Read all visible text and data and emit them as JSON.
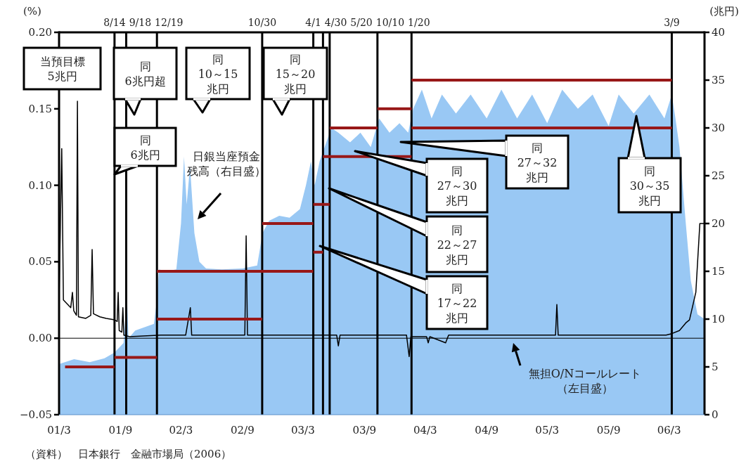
{
  "chart_data": {
    "type": "area",
    "ylabel": "(%)",
    "y2label": "(兆円)",
    "xlim": [
      "2001-03-01",
      "2006-06-15"
    ],
    "xticks": [
      {
        "value": "2001-03-01",
        "label": "01/3"
      },
      {
        "value": "2001-09-01",
        "label": "01/9"
      },
      {
        "value": "2002-03-01",
        "label": "02/3"
      },
      {
        "value": "2002-09-01",
        "label": "02/9"
      },
      {
        "value": "2003-03-01",
        "label": "03/3"
      },
      {
        "value": "2003-09-01",
        "label": "03/9"
      },
      {
        "value": "2004-03-01",
        "label": "04/3"
      },
      {
        "value": "2004-09-01",
        "label": "04/9"
      },
      {
        "value": "2005-03-01",
        "label": "05/3"
      },
      {
        "value": "2005-09-01",
        "label": "05/9"
      },
      {
        "value": "2006-03-01",
        "label": "06/3"
      }
    ],
    "ylim": [
      -0.05,
      0.2
    ],
    "yticks": [
      {
        "value": -0.05,
        "label": "−0.05"
      },
      {
        "value": 0,
        "label": "0.00"
      },
      {
        "value": 0.05,
        "label": "0.05"
      },
      {
        "value": 0.1,
        "label": "0.10"
      },
      {
        "value": 0.15,
        "label": "0.15"
      },
      {
        "value": 0.2,
        "label": "0.20"
      }
    ],
    "y2lim": [
      0,
      40
    ],
    "y2ticks": [
      0,
      5,
      10,
      15,
      20,
      25,
      30,
      35,
      40
    ],
    "series": [
      {
        "type": "area",
        "axis": "y2",
        "name": "日銀当座預金残高（右目盛）",
        "color": "#99c8f4",
        "x": [
          "2001-03-01",
          "2001-04-15",
          "2001-06-01",
          "2001-07-15",
          "2001-08-14",
          "2001-09-10",
          "2001-09-20",
          "2001-09-25",
          "2001-10-15",
          "2001-11-15",
          "2001-12-10",
          "2001-12-19",
          "2001-12-25",
          "2002-01-15",
          "2002-02-15",
          "2002-03-01",
          "2002-03-10",
          "2002-03-18",
          "2002-03-28",
          "2002-04-10",
          "2002-04-25",
          "2002-05-15",
          "2002-07-01",
          "2002-09-01",
          "2002-10-15",
          "2002-10-31",
          "2002-11-20",
          "2002-12-20",
          "2003-01-20",
          "2003-02-20",
          "2003-03-10",
          "2003-03-25",
          "2003-04-05",
          "2003-04-20",
          "2003-05-05",
          "2003-05-25",
          "2003-06-15",
          "2003-07-20",
          "2003-08-20",
          "2003-09-20",
          "2003-10-15",
          "2003-11-15",
          "2003-12-15",
          "2004-01-10",
          "2004-01-25",
          "2004-02-20",
          "2004-03-20",
          "2004-04-20",
          "2004-06-01",
          "2004-07-15",
          "2004-09-01",
          "2004-10-15",
          "2004-12-01",
          "2005-01-15",
          "2005-03-01",
          "2005-04-15",
          "2005-06-01",
          "2005-07-15",
          "2005-09-01",
          "2005-10-01",
          "2005-11-15",
          "2006-01-01",
          "2006-02-15",
          "2006-03-09",
          "2006-03-20",
          "2006-04-01",
          "2006-04-20",
          "2006-05-05",
          "2006-05-25",
          "2006-06-15"
        ],
        "values": [
          5.3,
          5.8,
          5.5,
          5.9,
          6.5,
          7.5,
          12.5,
          8,
          8.8,
          9.2,
          9.5,
          12,
          15.2,
          15,
          15.2,
          20,
          27,
          22,
          26,
          19,
          16,
          15.3,
          15.2,
          15.3,
          15.6,
          19,
          20.3,
          20.8,
          20.6,
          21.5,
          24,
          26.5,
          24,
          26.5,
          28,
          30,
          29.5,
          28.5,
          29.5,
          28,
          31,
          29.5,
          30.5,
          29.5,
          32,
          34,
          31,
          33.5,
          31.5,
          33.5,
          31,
          34,
          31,
          33.5,
          30.5,
          34,
          32,
          33.5,
          30.2,
          33.5,
          31.5,
          33.5,
          31,
          33.5,
          31,
          28,
          20,
          14,
          10.5,
          10
        ]
      },
      {
        "type": "line",
        "axis": "y",
        "name": "無担O/Nコールレート（左目盛）",
        "color": "#000000",
        "x": [
          "2001-03-01",
          "2001-03-09",
          "2001-03-14",
          "2001-04-05",
          "2001-04-10",
          "2001-04-14",
          "2001-04-22",
          "2001-04-25",
          "2001-04-28",
          "2001-05-20",
          "2001-06-04",
          "2001-06-08",
          "2001-06-12",
          "2001-07-01",
          "2001-07-20",
          "2001-08-14",
          "2001-08-22",
          "2001-08-25",
          "2001-08-28",
          "2001-09-05",
          "2001-09-08",
          "2001-09-11",
          "2001-09-28",
          "2001-12-31",
          "2002-03-15",
          "2002-03-29",
          "2002-04-02",
          "2002-09-08",
          "2002-09-12",
          "2002-09-16",
          "2003-06-10",
          "2003-06-15",
          "2003-06-20",
          "2004-01-05",
          "2004-01-13",
          "2004-01-18",
          "2004-03-05",
          "2004-03-10",
          "2004-03-15",
          "2004-05-01",
          "2004-05-10",
          "2005-03-26",
          "2005-03-30",
          "2005-04-03",
          "2006-02-20",
          "2006-03-09",
          "2006-04-01",
          "2006-04-20",
          "2006-05-01",
          "2006-05-20",
          "2006-06-01",
          "2006-06-15"
        ],
        "values": [
          0.025,
          0.124,
          0.025,
          0.02,
          0.03,
          0.018,
          0.015,
          0.155,
          0.014,
          0.013,
          0.015,
          0.058,
          0.016,
          0.014,
          0.013,
          0.012,
          0.011,
          0.03,
          0.005,
          0.004,
          0.02,
          0.002,
          0.001,
          0.002,
          0.002,
          0.02,
          0.002,
          0.002,
          0.067,
          0.002,
          0.002,
          -0.005,
          0.002,
          0.002,
          -0.012,
          0.001,
          0.001,
          -0.003,
          0.001,
          -0.003,
          0.002,
          0.002,
          0.022,
          0.002,
          0.002,
          0.003,
          0.005,
          0.01,
          0.012,
          0.03,
          0.075,
          0.075
        ]
      },
      {
        "type": "line",
        "axis": "y2",
        "color": "#981818",
        "x": [
          "2001-03-19",
          "2001-08-14"
        ],
        "values": [
          5,
          5
        ]
      },
      {
        "type": "line",
        "axis": "y2",
        "color": "#981818",
        "x": [
          "2001-08-14",
          "2001-12-19"
        ],
        "values": [
          6,
          6
        ]
      },
      {
        "type": "line",
        "axis": "y2",
        "color": "#981818",
        "x": [
          "2001-12-19",
          "2002-10-30"
        ],
        "values": [
          10,
          10
        ]
      },
      {
        "type": "line",
        "axis": "y2",
        "color": "#981818",
        "x": [
          "2001-12-19",
          "2003-04-01"
        ],
        "values": [
          15,
          15
        ]
      },
      {
        "type": "line",
        "axis": "y2",
        "color": "#981818",
        "x": [
          "2002-10-30",
          "2003-04-01"
        ],
        "values": [
          20,
          20
        ]
      },
      {
        "type": "line",
        "axis": "y2",
        "color": "#981818",
        "x": [
          "2003-04-01",
          "2003-04-30"
        ],
        "values": [
          17,
          17
        ]
      },
      {
        "type": "line",
        "axis": "y2",
        "color": "#981818",
        "x": [
          "2003-04-01",
          "2003-05-20"
        ],
        "values": [
          22,
          22
        ]
      },
      {
        "type": "line",
        "axis": "y2",
        "color": "#981818",
        "x": [
          "2003-04-30",
          "2004-01-20"
        ],
        "values": [
          27,
          27
        ]
      },
      {
        "type": "line",
        "axis": "y2",
        "color": "#981818",
        "x": [
          "2003-05-20",
          "2003-10-10"
        ],
        "values": [
          30,
          30
        ]
      },
      {
        "type": "line",
        "axis": "y2",
        "color": "#981818",
        "x": [
          "2003-10-10",
          "2004-01-20"
        ],
        "values": [
          32,
          32
        ]
      },
      {
        "type": "line",
        "axis": "y2",
        "color": "#981818",
        "x": [
          "2004-01-20",
          "2006-03-09"
        ],
        "values": [
          30,
          30
        ]
      },
      {
        "type": "line",
        "axis": "y2",
        "color": "#981818",
        "x": [
          "2004-01-20",
          "2006-03-09"
        ],
        "values": [
          35,
          35
        ]
      }
    ],
    "ref_lines": [
      {
        "axis": "y",
        "value": 0
      },
      {
        "axis": "x",
        "value": "2001-08-14",
        "label": "8/14"
      },
      {
        "axis": "x",
        "value": "2001-09-18",
        "label": "9/18"
      },
      {
        "axis": "x",
        "value": "2001-12-19",
        "label": "12/19"
      },
      {
        "axis": "x",
        "value": "2002-10-30",
        "label": "10/30"
      },
      {
        "axis": "x",
        "value": "2003-04-01",
        "label": "4/1"
      },
      {
        "axis": "x",
        "value": "2003-04-30",
        "label": "4/30"
      },
      {
        "axis": "x",
        "value": "2003-05-20",
        "label": "5/20"
      },
      {
        "axis": "x",
        "value": "2003-10-10",
        "label": "10/10"
      },
      {
        "axis": "x",
        "value": "2004-01-20",
        "label": "1/20"
      },
      {
        "axis": "x",
        "value": "2006-03-09",
        "label": "3/9"
      }
    ],
    "annotations": [
      "当預目標\n5兆円",
      "同\n6兆円超",
      "同\n6兆円",
      "同\n10～15\n兆円",
      "同\n15～20\n兆円",
      "同\n27～30\n兆円",
      "同\n27～32\n兆円",
      "同\n22～27\n兆円",
      "同\n17～22\n兆円",
      "同\n30～35\n兆円",
      "（資料）　日本銀行　金融市場局（2006）"
    ]
  }
}
